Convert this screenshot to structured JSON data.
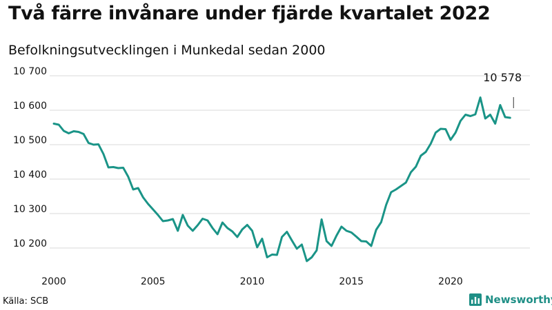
{
  "title": "Två färre invånare under fjärde kvartalet 2022",
  "subtitle": "Befolkningsutvecklingen i Munkedal sedan 2000",
  "source": "Källa: SCB",
  "brand": "Newsworthy",
  "colors": {
    "line": "#1a9487",
    "grid": "#d9d9d9",
    "text": "#111111",
    "brand": "#1f8f86"
  },
  "chart_data": {
    "type": "line",
    "x_start": 2000,
    "x_step": 0.25,
    "values": [
      10561,
      10558,
      10540,
      10533,
      10539,
      10537,
      10531,
      10505,
      10500,
      10501,
      10473,
      10434,
      10435,
      10432,
      10433,
      10407,
      10370,
      10374,
      10347,
      10328,
      10312,
      10296,
      10278,
      10280,
      10284,
      10250,
      10296,
      10265,
      10250,
      10266,
      10285,
      10280,
      10258,
      10240,
      10274,
      10258,
      10248,
      10232,
      10254,
      10267,
      10250,
      10202,
      10227,
      10173,
      10181,
      10180,
      10232,
      10247,
      10222,
      10198,
      10210,
      10162,
      10173,
      10193,
      10283,
      10220,
      10206,
      10236,
      10262,
      10250,
      10245,
      10233,
      10220,
      10219,
      10206,
      10253,
      10275,
      10325,
      10362,
      10370,
      10380,
      10390,
      10420,
      10436,
      10468,
      10479,
      10503,
      10535,
      10546,
      10545,
      10514,
      10535,
      10569,
      10587,
      10583,
      10588,
      10637,
      10576,
      10587,
      10561,
      10615,
      10580,
      10578
    ],
    "ylim": [
      10150,
      10720
    ],
    "yticks": [
      10200,
      10300,
      10400,
      10500,
      10600,
      10700
    ],
    "ytick_labels": [
      "10 200",
      "10 300",
      "10 400",
      "10 500",
      "10 600",
      "10 700"
    ],
    "xlim": [
      2000,
      2024
    ],
    "xticks": [
      2000,
      2005,
      2010,
      2015,
      2020
    ],
    "xtick_labels": [
      "2000",
      "2005",
      "2010",
      "2015",
      "2020"
    ],
    "annotation": {
      "text": "10 578",
      "value": 10578
    },
    "grid": true,
    "legend": "none"
  }
}
